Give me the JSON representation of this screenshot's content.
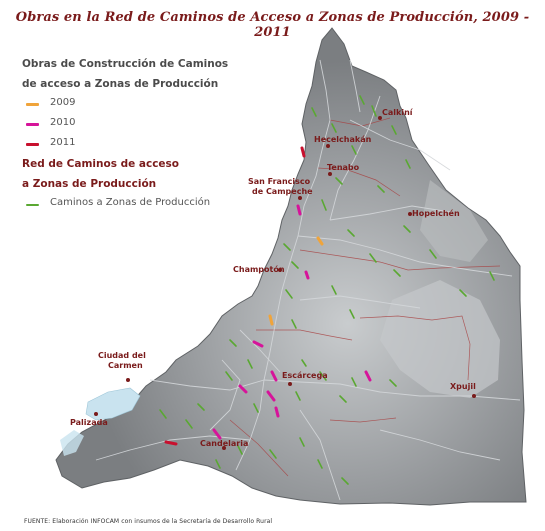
{
  "title": "Obras en la Red de Caminos de Acceso  a Zonas de Producción, 2009 - 2011",
  "legend": {
    "heading_works": "Obras de Construcción de Caminos de acceso a Zonas de Producción",
    "heading_works_line1": "Obras de Construcción de Caminos",
    "heading_works_line2": "de acceso a Zonas de Producción",
    "years": [
      {
        "label": "2009",
        "color": "#f0a43a"
      },
      {
        "label": "2010",
        "color": "#d6149a"
      },
      {
        "label": "2011",
        "color": "#c8102e"
      }
    ],
    "heading_network_line1": "Red de Caminos de acceso",
    "heading_network_line2": "a Zonas de Producción",
    "network_item": {
      "label": "Caminos a Zonas de Producción",
      "color": "#5aa832"
    }
  },
  "places": {
    "calkini": "Calkiní",
    "hecelchakan": "Hecelchakán",
    "tenabo": "Tenabo",
    "campeche_line1": "San Francisco",
    "campeche_line2": "de Campeche",
    "hopelchen": "Hopelchén",
    "champoton": "Champotón",
    "ciudad_carmen_line1": "Ciudad del",
    "ciudad_carmen_line2": "Carmen",
    "escarcega": "Escárcega",
    "xpujil": "Xpujil",
    "palizada": "Palizada",
    "candelaria": "Candelaria"
  },
  "colors": {
    "land": "#7e8184",
    "land_light": "#b9bcbf",
    "water": "#c9e3ef",
    "roads": "#cfd2d5",
    "boundary": "#a84040"
  },
  "source": "FUENTE: Elaboración INFOCAM con insumos de la Secretaría de Desarrollo Rural"
}
